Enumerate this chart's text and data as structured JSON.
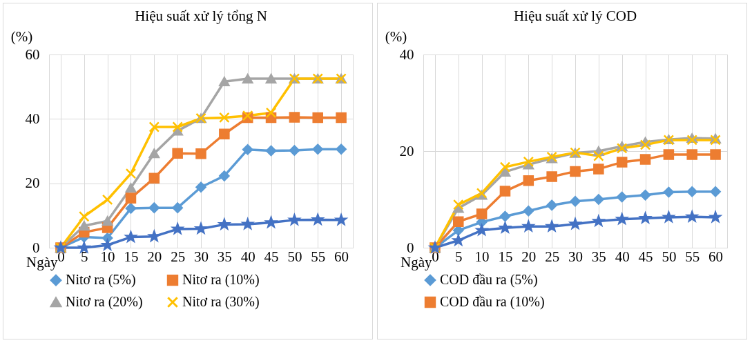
{
  "chart_data": [
    {
      "type": "line",
      "title": "Hiệu suất xử lý tổng N",
      "xlabel": "Ngày",
      "ylabel": "(%)",
      "categories": [
        "0",
        "5",
        "10",
        "15",
        "20",
        "25",
        "30",
        "35",
        "40",
        "45",
        "50",
        "55",
        "60"
      ],
      "ylim": [
        0,
        60
      ],
      "yticks": [
        0,
        20,
        40,
        60
      ],
      "grid": true,
      "legend": "bottom",
      "series": [
        {
          "name": "Nitơ ra (5%)",
          "color": "#5b9bd5",
          "marker": "diamond",
          "values": [
            0,
            3.3,
            3.0,
            12.2,
            12.4,
            12.4,
            18.8,
            22.3,
            30.5,
            30.1,
            30.2,
            30.6,
            30.6
          ]
        },
        {
          "name": "Nitơ ra (10%)",
          "color": "#ed7d31",
          "marker": "square",
          "values": [
            0,
            4.8,
            6.2,
            15.4,
            21.6,
            29.3,
            29.2,
            35.3,
            40.4,
            40.4,
            40.5,
            40.4,
            40.4
          ]
        },
        {
          "name": "Nitơ ra (20%)",
          "color": "#a5a5a5",
          "marker": "triangle",
          "values": [
            0,
            6.8,
            8.3,
            18.6,
            29.3,
            36.3,
            40.2,
            51.6,
            52.5,
            52.5,
            52.5,
            52.5,
            52.5
          ]
        },
        {
          "name": "Nitơ ra (30%)",
          "color": "#ffc000",
          "marker": "cross",
          "values": [
            0,
            9.7,
            14.9,
            23.0,
            37.5,
            37.5,
            40.2,
            40.4,
            41.0,
            41.9,
            52.5,
            52.5,
            52.5
          ]
        },
        {
          "color": "#4472c4",
          "marker": "star",
          "values": [
            0,
            0,
            0.8,
            3.3,
            3.5,
            5.8,
            5.9,
            7.2,
            7.3,
            7.8,
            8.6,
            8.7,
            8.6
          ]
        }
      ]
    },
    {
      "type": "line",
      "title": "Hiệu suất xử lý COD",
      "xlabel": "Ngày",
      "ylabel": "(%)",
      "categories": [
        "0",
        "5",
        "10",
        "15",
        "20",
        "25",
        "30",
        "35",
        "40",
        "45",
        "50",
        "55",
        "60"
      ],
      "ylim": [
        0,
        40
      ],
      "yticks": [
        0,
        20,
        40
      ],
      "grid": true,
      "legend": "bottom",
      "series": [
        {
          "name": "COD đầu ra (5%)",
          "color": "#5b9bd5",
          "marker": "diamond",
          "values": [
            0,
            3.6,
            5.3,
            6.5,
            7.6,
            8.8,
            9.6,
            10.0,
            10.5,
            10.9,
            11.5,
            11.6,
            11.6
          ]
        },
        {
          "name": "COD đầu ra (10%)",
          "color": "#ed7d31",
          "marker": "square",
          "values": [
            0,
            5.4,
            7.0,
            11.7,
            13.9,
            14.7,
            15.8,
            16.3,
            17.7,
            18.3,
            19.3,
            19.3,
            19.3
          ]
        },
        {
          "color": "#a5a5a5",
          "marker": "triangle",
          "values": [
            0,
            8.2,
            10.9,
            15.7,
            17.2,
            18.5,
            19.6,
            20.0,
            21.0,
            21.9,
            22.4,
            22.7,
            22.6
          ]
        },
        {
          "color": "#ffc000",
          "marker": "cross",
          "values": [
            0,
            8.9,
            11.3,
            16.7,
            17.8,
            18.8,
            19.7,
            19.0,
            20.6,
            21.3,
            22.3,
            22.3,
            22.3
          ]
        },
        {
          "color": "#4472c4",
          "marker": "star",
          "values": [
            0,
            1.5,
            3.6,
            4.1,
            4.4,
            4.4,
            4.9,
            5.5,
            5.9,
            6.1,
            6.3,
            6.4,
            6.3
          ]
        }
      ]
    }
  ]
}
